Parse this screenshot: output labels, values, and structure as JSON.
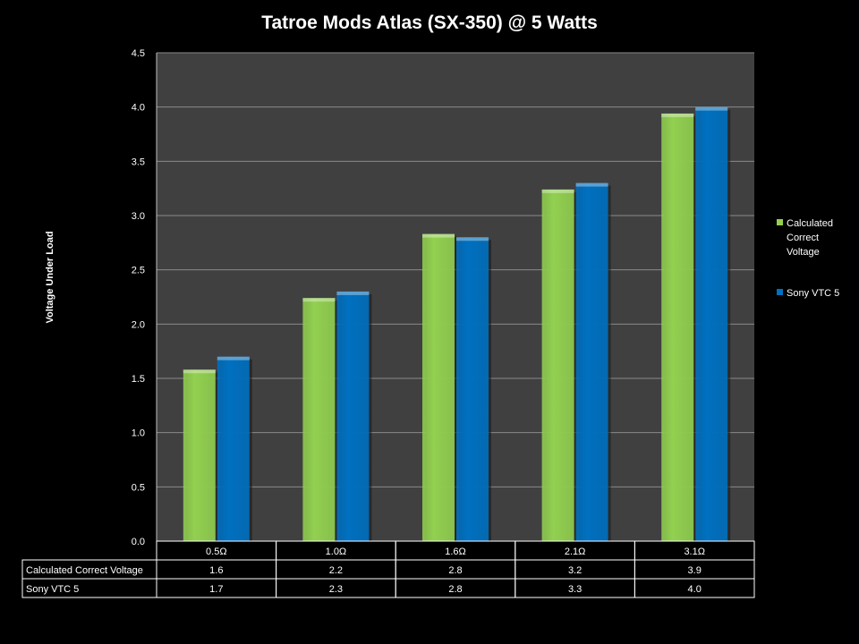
{
  "chart_data": {
    "type": "bar",
    "title": "Tatroe Mods Atlas (SX-350) @ 5 Watts",
    "ylabel": "Voltage Under Load",
    "xlabel": "",
    "ylim": [
      0,
      4.5
    ],
    "ytick_step": 0.5,
    "ytick_labels": [
      "0.0",
      "0.5",
      "1.0",
      "1.5",
      "2.0",
      "2.5",
      "3.0",
      "3.5",
      "4.0",
      "4.5"
    ],
    "categories": [
      "0.5Ω",
      "1.0Ω",
      "1.6Ω",
      "2.1Ω",
      "3.1Ω"
    ],
    "series": [
      {
        "name": "Calculated Correct Voltage",
        "legend_lines": [
          "Calculated",
          "Correct",
          "Voltage"
        ],
        "color": "#92D050",
        "values": [
          1.58,
          2.24,
          2.83,
          3.24,
          3.94
        ],
        "table_values": [
          "1.6",
          "2.2",
          "2.8",
          "3.2",
          "3.9"
        ]
      },
      {
        "name": "Sony VTC 5",
        "legend_lines": [
          "Sony VTC 5"
        ],
        "color": "#0070C0",
        "values": [
          1.7,
          2.3,
          2.8,
          3.3,
          4.0
        ],
        "table_values": [
          "1.7",
          "2.3",
          "2.8",
          "3.3",
          "4.0"
        ]
      }
    ],
    "grid": true,
    "legend_position": "right",
    "data_table": true,
    "plot_background": "#404040"
  }
}
